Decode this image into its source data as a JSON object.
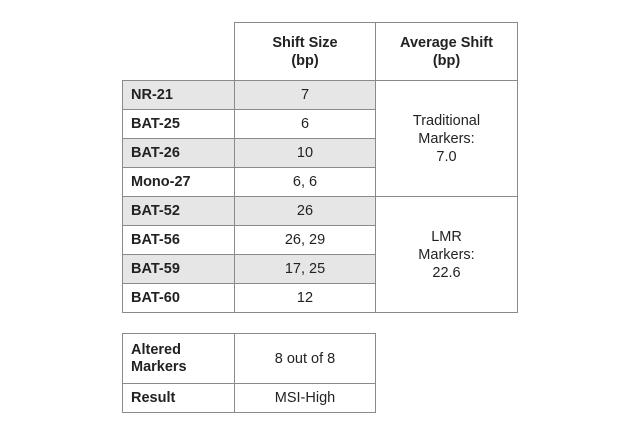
{
  "table": {
    "headers": [
      "",
      "Shift Size\n(bp)",
      "Average Shift\n(bp)"
    ],
    "header_lines": {
      "shift_size": [
        "Shift Size",
        "(bp)"
      ],
      "average_shift": [
        "Average Shift",
        "(bp)"
      ]
    },
    "rows": [
      {
        "marker": "NR-21",
        "shift_size": "7",
        "shaded": true
      },
      {
        "marker": "BAT-25",
        "shift_size": "6",
        "shaded": false
      },
      {
        "marker": "BAT-26",
        "shift_size": "10",
        "shaded": true
      },
      {
        "marker": "Mono-27",
        "shift_size": "6, 6",
        "shaded": false
      },
      {
        "marker": "BAT-52",
        "shift_size": "26",
        "shaded": true
      },
      {
        "marker": "BAT-56",
        "shift_size": "26, 29",
        "shaded": false
      },
      {
        "marker": "BAT-59",
        "shift_size": "17, 25",
        "shaded": true
      },
      {
        "marker": "BAT-60",
        "shift_size": "12",
        "shaded": false
      }
    ],
    "groups": [
      {
        "lines": [
          "Traditional",
          "Markers:",
          "7.0"
        ],
        "row_span": 4
      },
      {
        "lines": [
          "LMR",
          "Markers:",
          "22.6"
        ],
        "row_span": 4
      }
    ]
  },
  "summary": {
    "altered_label_lines": [
      "Altered",
      "Markers"
    ],
    "altered_value": "8 out of 8",
    "result_label": "Result",
    "result_value": "MSI-High"
  },
  "colors": {
    "shaded_row": "#e6e6e6",
    "border": "#8a8a8a"
  }
}
